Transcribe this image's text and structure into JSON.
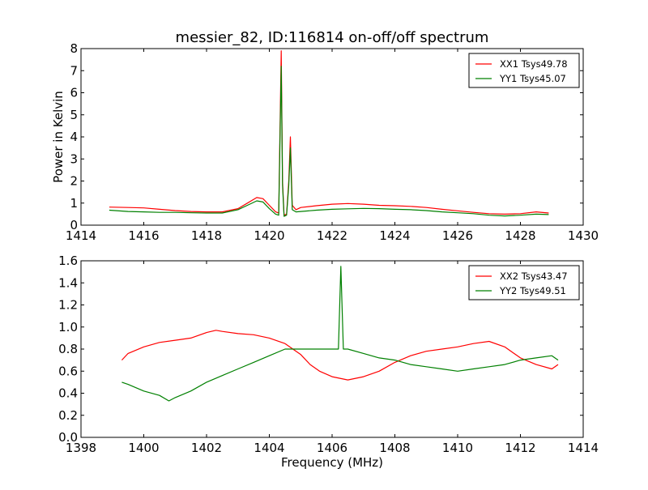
{
  "title": "messier_82, ID:116814 on-off/off spectrum",
  "chart_data": [
    {
      "type": "line",
      "ylabel": "Power in Kelvin",
      "xlabel": "",
      "xlim": [
        1414,
        1430
      ],
      "ylim": [
        0,
        8
      ],
      "xticks": [
        1414,
        1416,
        1418,
        1420,
        1422,
        1424,
        1426,
        1428,
        1430
      ],
      "yticks": [
        0,
        1,
        2,
        3,
        4,
        5,
        6,
        7,
        8
      ],
      "ytick_decimals": 0,
      "legend": "top-right",
      "series": [
        {
          "name": "XX1 Tsys49.78",
          "color": "#ff0000",
          "x": [
            1414.9,
            1415.5,
            1416.0,
            1416.5,
            1417.0,
            1417.5,
            1418.0,
            1418.5,
            1419.0,
            1419.3,
            1419.6,
            1419.8,
            1420.0,
            1420.2,
            1420.3,
            1420.38,
            1420.42,
            1420.47,
            1420.55,
            1420.62,
            1420.67,
            1420.73,
            1420.85,
            1421.0,
            1421.5,
            1422.0,
            1422.5,
            1423.0,
            1423.5,
            1424.0,
            1424.5,
            1425.0,
            1425.5,
            1426.0,
            1426.5,
            1427.0,
            1427.5,
            1428.0,
            1428.5,
            1428.9
          ],
          "y": [
            0.82,
            0.8,
            0.78,
            0.72,
            0.66,
            0.62,
            0.6,
            0.6,
            0.75,
            1.0,
            1.25,
            1.2,
            0.9,
            0.6,
            0.55,
            7.9,
            2.0,
            0.45,
            0.5,
            2.0,
            4.0,
            0.9,
            0.7,
            0.8,
            0.88,
            0.95,
            0.98,
            0.95,
            0.9,
            0.88,
            0.85,
            0.8,
            0.72,
            0.65,
            0.58,
            0.52,
            0.5,
            0.52,
            0.6,
            0.55
          ]
        },
        {
          "name": "YY1 Tsys45.07",
          "color": "#008000",
          "x": [
            1414.9,
            1415.5,
            1416.0,
            1416.5,
            1417.0,
            1417.5,
            1418.0,
            1418.5,
            1419.0,
            1419.3,
            1419.6,
            1419.8,
            1420.0,
            1420.2,
            1420.3,
            1420.38,
            1420.42,
            1420.47,
            1420.55,
            1420.62,
            1420.67,
            1420.73,
            1420.85,
            1421.0,
            1421.5,
            1422.0,
            1422.5,
            1423.0,
            1423.5,
            1424.0,
            1424.5,
            1425.0,
            1425.5,
            1426.0,
            1426.5,
            1427.0,
            1427.5,
            1428.0,
            1428.5,
            1428.9
          ],
          "y": [
            0.68,
            0.62,
            0.6,
            0.58,
            0.58,
            0.56,
            0.55,
            0.55,
            0.7,
            0.9,
            1.1,
            1.05,
            0.75,
            0.5,
            0.45,
            7.2,
            1.8,
            0.4,
            0.45,
            1.8,
            3.5,
            0.7,
            0.6,
            0.62,
            0.68,
            0.72,
            0.74,
            0.76,
            0.75,
            0.72,
            0.7,
            0.66,
            0.6,
            0.56,
            0.52,
            0.45,
            0.42,
            0.45,
            0.5,
            0.48
          ]
        }
      ]
    },
    {
      "type": "line",
      "ylabel": "",
      "xlabel": "Frequency (MHz)",
      "xlim": [
        1398,
        1414
      ],
      "ylim": [
        0,
        1.6
      ],
      "xticks": [
        1398,
        1400,
        1402,
        1404,
        1406,
        1408,
        1410,
        1412,
        1414
      ],
      "yticks": [
        0.0,
        0.2,
        0.4,
        0.6,
        0.8,
        1.0,
        1.2,
        1.4,
        1.6
      ],
      "ytick_decimals": 1,
      "legend": "top-right",
      "series": [
        {
          "name": "XX2 Tsys43.47",
          "color": "#ff0000",
          "x": [
            1399.3,
            1399.5,
            1400.0,
            1400.5,
            1401.0,
            1401.5,
            1402.0,
            1402.3,
            1402.5,
            1403.0,
            1403.5,
            1404.0,
            1404.5,
            1405.0,
            1405.3,
            1405.6,
            1406.0,
            1406.5,
            1407.0,
            1407.5,
            1408.0,
            1408.5,
            1409.0,
            1409.5,
            1410.0,
            1410.5,
            1411.0,
            1411.5,
            1412.0,
            1412.5,
            1413.0,
            1413.2
          ],
          "y": [
            0.7,
            0.76,
            0.82,
            0.86,
            0.88,
            0.9,
            0.95,
            0.97,
            0.96,
            0.94,
            0.93,
            0.9,
            0.85,
            0.75,
            0.66,
            0.6,
            0.55,
            0.52,
            0.55,
            0.6,
            0.68,
            0.74,
            0.78,
            0.8,
            0.82,
            0.85,
            0.87,
            0.82,
            0.72,
            0.66,
            0.62,
            0.66
          ]
        },
        {
          "name": "YY2 Tsys49.51",
          "color": "#008000",
          "x": [
            1399.3,
            1399.5,
            1400.0,
            1400.5,
            1400.8,
            1401.0,
            1401.5,
            1402.0,
            1402.5,
            1403.0,
            1403.5,
            1404.0,
            1404.5,
            1405.0,
            1405.5,
            1406.0,
            1406.2,
            1406.28,
            1406.36,
            1406.5,
            1407.0,
            1407.5,
            1408.0,
            1408.5,
            1409.0,
            1409.5,
            1410.0,
            1410.5,
            1411.0,
            1411.5,
            1412.0,
            1412.5,
            1413.0,
            1413.2
          ],
          "y": [
            0.5,
            0.48,
            0.42,
            0.38,
            0.33,
            0.36,
            0.42,
            0.5,
            0.56,
            0.62,
            0.68,
            0.74,
            0.8,
            0.8,
            0.8,
            0.8,
            0.8,
            1.55,
            0.8,
            0.8,
            0.76,
            0.72,
            0.7,
            0.66,
            0.64,
            0.62,
            0.6,
            0.62,
            0.64,
            0.66,
            0.7,
            0.72,
            0.74,
            0.7
          ]
        }
      ]
    }
  ]
}
